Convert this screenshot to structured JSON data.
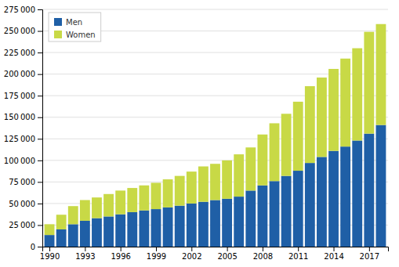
{
  "chart_data": {
    "type": "bar",
    "stacked": true,
    "x": [
      1990,
      1991,
      1992,
      1993,
      1994,
      1995,
      1996,
      1997,
      1998,
      1999,
      2000,
      2001,
      2002,
      2003,
      2004,
      2005,
      2006,
      2007,
      2008,
      2009,
      2010,
      2011,
      2012,
      2013,
      2014,
      2015,
      2016,
      2017,
      2018
    ],
    "series": [
      {
        "name": "Men",
        "color": "#1F5FA6",
        "values": [
          13500,
          20000,
          26000,
          30000,
          33000,
          35000,
          37500,
          40000,
          42000,
          43500,
          45500,
          47500,
          50000,
          52000,
          54000,
          55500,
          58000,
          65000,
          71000,
          76000,
          82000,
          88000,
          97000,
          104000,
          111000,
          116000,
          123000,
          131000,
          141000
        ]
      },
      {
        "name": "Women",
        "color": "#C8D946",
        "values": [
          12500,
          17000,
          21000,
          24000,
          24000,
          26000,
          27500,
          28000,
          29000,
          30500,
          32500,
          34500,
          37000,
          41000,
          42000,
          44500,
          49000,
          50000,
          59000,
          67000,
          72000,
          80000,
          89000,
          92000,
          95000,
          102000,
          107000,
          118000,
          117000
        ]
      }
    ],
    "xlim": [
      1989.4,
      2018.6
    ],
    "xticks": [
      1990,
      1993,
      1996,
      1999,
      2002,
      2005,
      2008,
      2011,
      2014,
      2017
    ],
    "ylim": [
      0,
      275000
    ],
    "yticks": [
      0,
      {
        "value": 25000,
        "label": "25 000"
      },
      {
        "value": 50000,
        "label": "50 000"
      },
      {
        "value": 75000,
        "label": "75 000"
      },
      {
        "value": 100000,
        "label": "100 000"
      },
      {
        "value": 125000,
        "label": "125 000"
      },
      {
        "value": 150000,
        "label": "150 000"
      },
      {
        "value": 175000,
        "label": "175 000"
      },
      {
        "value": 200000,
        "label": "200 000"
      },
      {
        "value": 225000,
        "label": "225 000"
      },
      {
        "value": 250000,
        "label": "250 000"
      },
      {
        "value": 275000,
        "label": "275 000"
      }
    ],
    "grid": true,
    "legend": "upper-left"
  }
}
